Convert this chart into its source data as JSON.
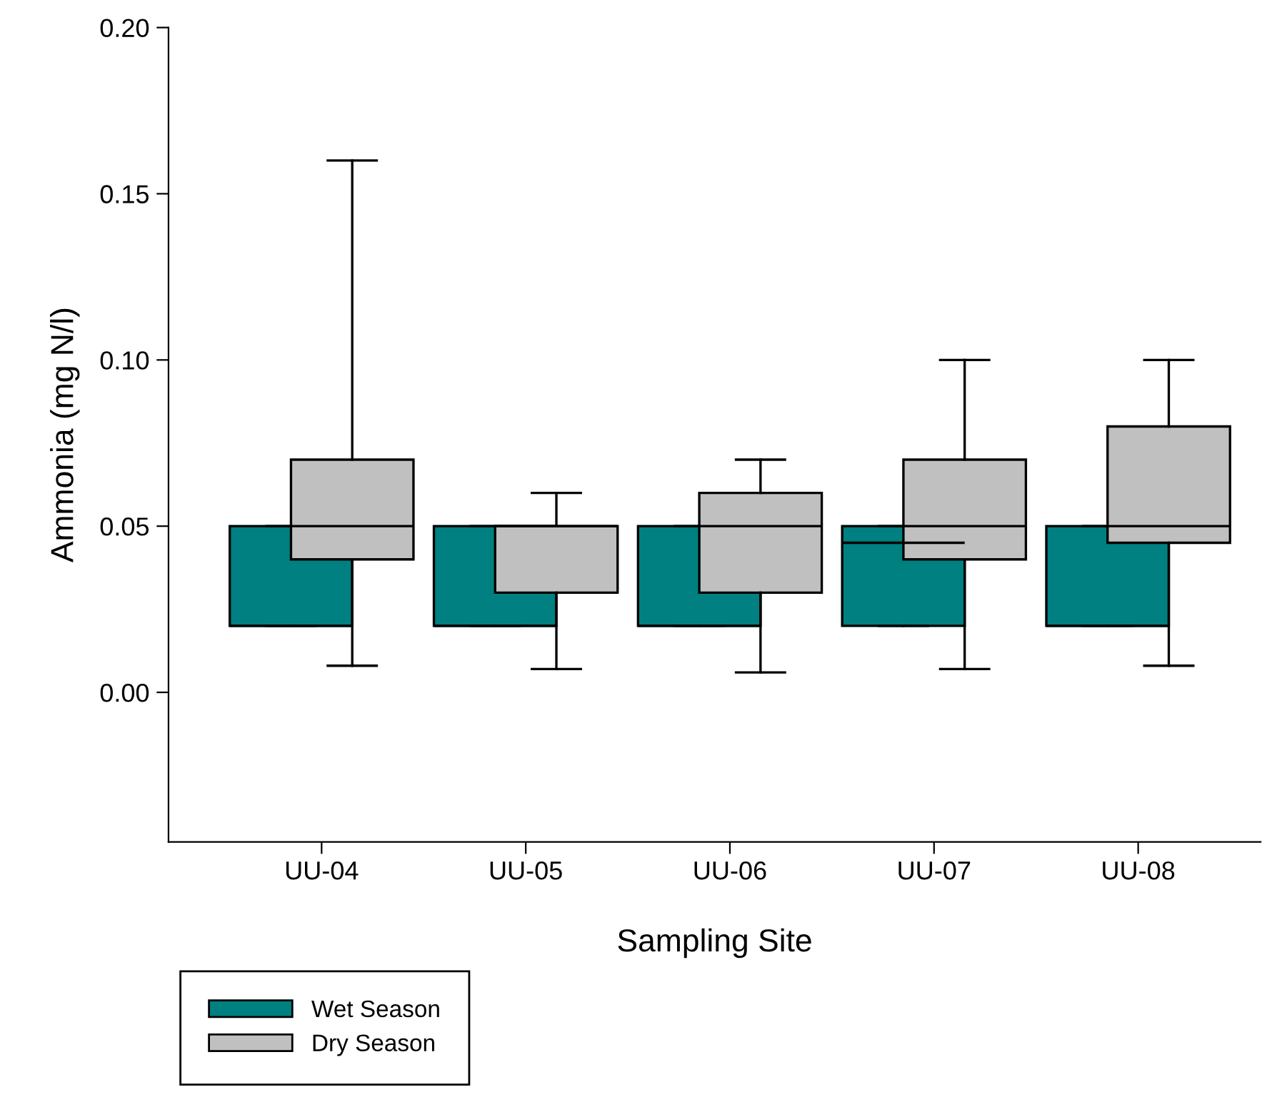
{
  "chart_data": {
    "type": "box",
    "xlabel": "Sampling Site",
    "ylabel": "Ammonia (mg N/l)",
    "categories": [
      "UU-04",
      "UU-05",
      "UU-06",
      "UU-07",
      "UU-08"
    ],
    "ylim": [
      -0.045,
      0.2
    ],
    "yticks": [
      {
        "value": 0,
        "label": "0.00"
      },
      {
        "value": 0.05,
        "label": "0.05"
      },
      {
        "value": 0.1,
        "label": "0.10"
      },
      {
        "value": 0.15,
        "label": "0.15"
      },
      {
        "value": 0.2,
        "label": "0.20"
      }
    ],
    "legend": "bottom left",
    "grid": false,
    "series": [
      {
        "name": "Wet Season",
        "color": "#008080",
        "boxes": [
          {
            "low": 0.02,
            "q1": 0.02,
            "median": 0.02,
            "q3": 0.05,
            "high": 0.05
          },
          {
            "low": 0.02,
            "q1": 0.02,
            "median": 0.02,
            "q3": 0.05,
            "high": 0.05
          },
          {
            "low": 0.02,
            "q1": 0.02,
            "median": 0.02,
            "q3": 0.05,
            "high": 0.05
          },
          {
            "low": 0.02,
            "q1": 0.02,
            "median": 0.045,
            "q3": 0.05,
            "high": 0.05
          },
          {
            "low": 0.02,
            "q1": 0.02,
            "median": 0.02,
            "q3": 0.05,
            "high": 0.05
          }
        ]
      },
      {
        "name": "Dry Season",
        "color": "#c0c0c0",
        "boxes": [
          {
            "low": 0.008,
            "q1": 0.04,
            "median": 0.05,
            "q3": 0.07,
            "high": 0.16
          },
          {
            "low": 0.007,
            "q1": 0.03,
            "median": 0.05,
            "q3": 0.05,
            "high": 0.06
          },
          {
            "low": 0.006,
            "q1": 0.03,
            "median": 0.05,
            "q3": 0.06,
            "high": 0.07
          },
          {
            "low": 0.007,
            "q1": 0.04,
            "median": 0.05,
            "q3": 0.07,
            "high": 0.1
          },
          {
            "low": 0.008,
            "q1": 0.045,
            "median": 0.05,
            "q3": 0.08,
            "high": 0.1
          }
        ]
      }
    ]
  }
}
